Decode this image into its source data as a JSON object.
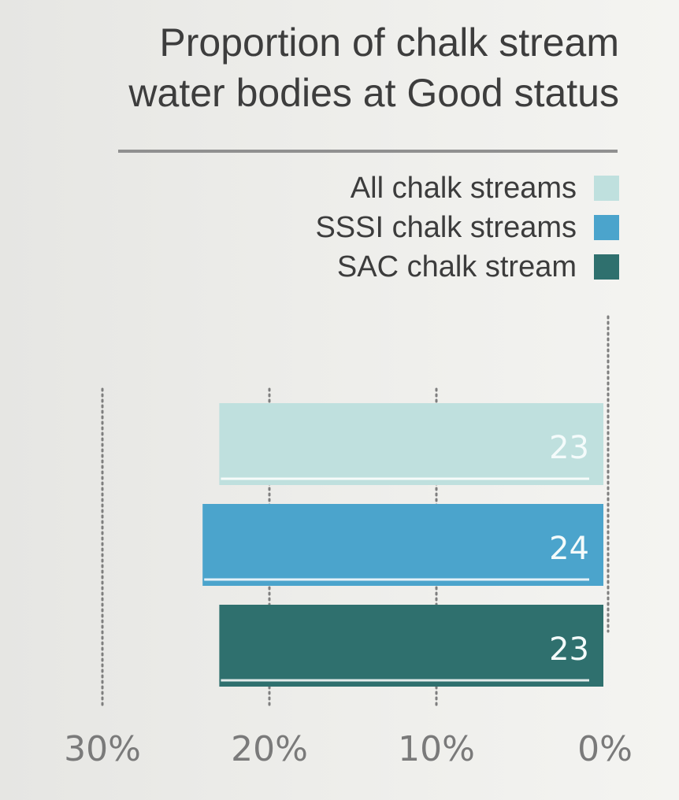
{
  "chart_data": {
    "type": "bar",
    "orientation": "horizontal",
    "direction": "right-to-left",
    "title": "Proportion of chalk stream water bodies at Good status",
    "title_lines": [
      "Proportion of chalk stream",
      "water bodies at Good status"
    ],
    "categories": [
      "All chalk streams",
      "SSSI chalk streams",
      "SAC chalk stream"
    ],
    "values": [
      23,
      24,
      23
    ],
    "value_labels": [
      "23",
      "24",
      "23"
    ],
    "colors": [
      "#bfe0de",
      "#4ba4cc",
      "#2f706e"
    ],
    "x_ticks": [
      30,
      20,
      10,
      0
    ],
    "x_tick_labels": [
      "30%",
      "20%",
      "10%",
      "0%"
    ],
    "xlim": [
      0,
      30
    ],
    "grid": "dotted vertical",
    "legend_position": "top-right"
  }
}
